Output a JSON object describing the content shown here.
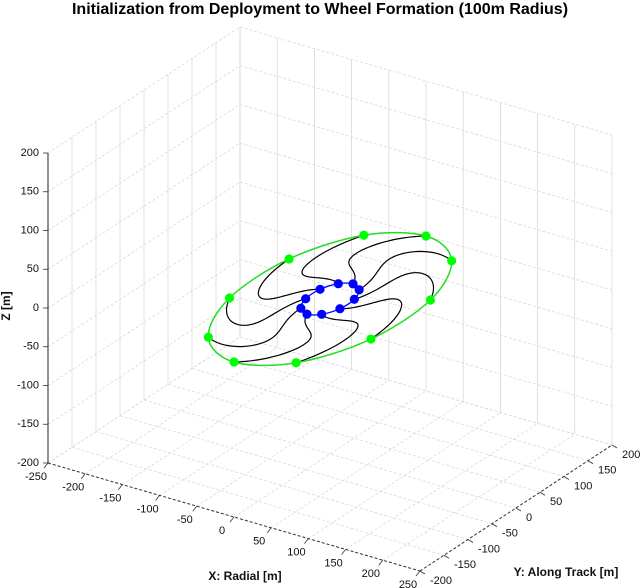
{
  "chart_data": {
    "type": "scatter3d",
    "title": "Initialization from Deployment to Wheel Formation (100m Radius)",
    "xlabel": "X: Radial [m]",
    "ylabel": "Y: Along Track [m]",
    "zlabel": "Z [m]",
    "xlim": [
      -250,
      250
    ],
    "ylim": [
      -200,
      200
    ],
    "zlim": [
      -200,
      200
    ],
    "xticks": [
      -250,
      -200,
      -150,
      -100,
      -50,
      0,
      50,
      100,
      150,
      200,
      250
    ],
    "yticks": [
      -200,
      -150,
      -100,
      -50,
      0,
      50,
      100,
      150,
      200
    ],
    "zticks": [
      -200,
      -150,
      -100,
      -50,
      0,
      50,
      100,
      150,
      200
    ],
    "grid": true,
    "colors": {
      "deployment": "#0000ff",
      "formation": "#00ff00",
      "formation_line": "#22dd22",
      "trajectory": "#000000"
    },
    "series": [
      {
        "role": "deployment",
        "points": [
          [
            0,
            48,
            0
          ],
          [
            14,
            39,
            0
          ],
          [
            23,
            15,
            0
          ],
          [
            23,
            -15,
            0
          ],
          [
            14,
            -39,
            0
          ],
          [
            0,
            -48,
            0
          ],
          [
            -14,
            -39,
            0
          ],
          [
            -23,
            -15,
            0
          ],
          [
            -23,
            15,
            0
          ],
          [
            -14,
            39,
            0
          ]
        ]
      },
      {
        "role": "formation",
        "points": [
          [
            0,
            200,
            0
          ],
          [
            59,
            162,
            0
          ],
          [
            95,
            62,
            0
          ],
          [
            95,
            -62,
            0
          ],
          [
            59,
            -162,
            0
          ],
          [
            0,
            -200,
            0
          ],
          [
            -59,
            -162,
            0
          ],
          [
            -95,
            -62,
            0
          ],
          [
            -95,
            62,
            0
          ],
          [
            -59,
            162,
            0
          ]
        ]
      }
    ]
  }
}
